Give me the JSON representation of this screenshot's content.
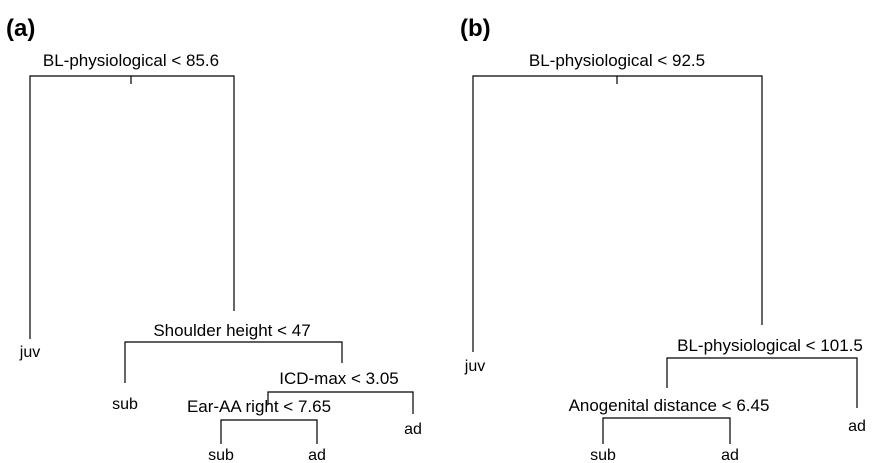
{
  "panels": {
    "a": {
      "label": "(a)",
      "root": {
        "split": "BL-physiological < 85.6"
      },
      "nodes": {
        "n1": {
          "split": "Shoulder height < 47"
        },
        "n2": {
          "split": "ICD-max < 3.05"
        },
        "n3": {
          "split": "Ear-AA right < 7.65"
        }
      },
      "leaves": [
        "juv",
        "sub",
        "sub",
        "ad",
        "ad"
      ]
    },
    "b": {
      "label": "(b)",
      "root": {
        "split": "BL-physiological < 92.5"
      },
      "nodes": {
        "n1": {
          "split": "BL-physiological < 101.5"
        },
        "n2": {
          "split": "Anogenital distance < 6.45"
        }
      },
      "leaves": [
        "juv",
        "sub",
        "ad",
        "ad"
      ]
    }
  }
}
